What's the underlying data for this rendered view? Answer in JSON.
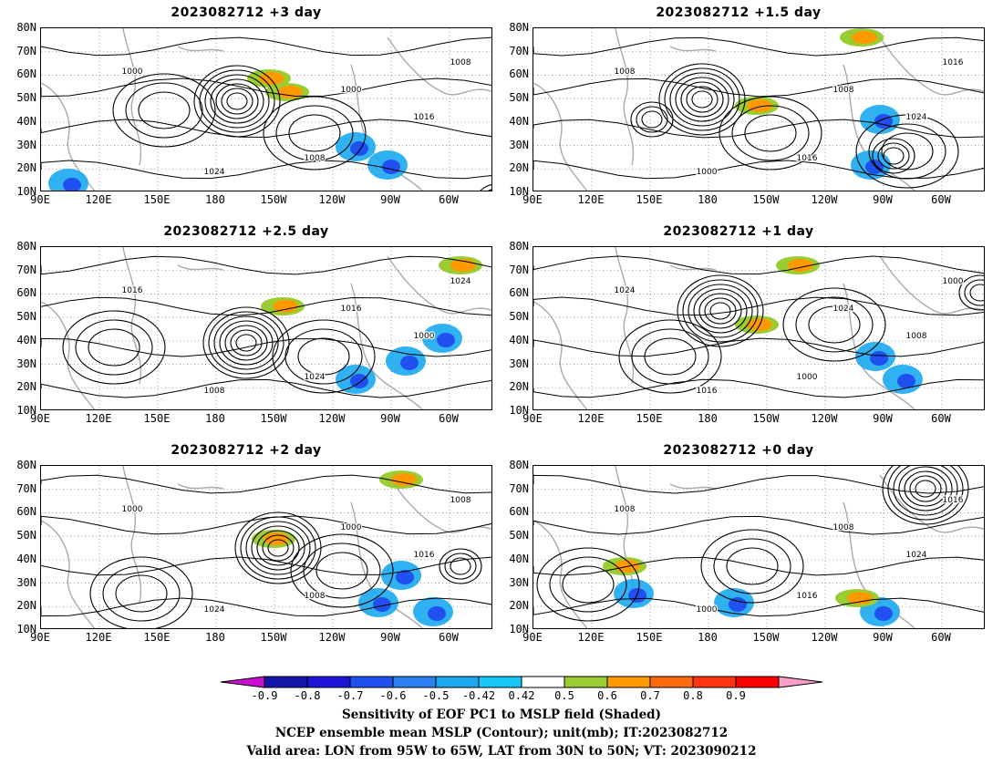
{
  "panels": [
    {
      "title": "2023082712 +3 day"
    },
    {
      "title": "2023082712 +1.5 day"
    },
    {
      "title": "2023082712 +2.5 day"
    },
    {
      "title": "2023082712 +1 day"
    },
    {
      "title": "2023082712 +2 day"
    },
    {
      "title": "2023082712 +0 day"
    }
  ],
  "axes": {
    "lat_labels": [
      "80N",
      "70N",
      "60N",
      "50N",
      "40N",
      "30N",
      "20N",
      "10N"
    ],
    "lon_labels": [
      "90E",
      "120E",
      "150E",
      "180",
      "150W",
      "120W",
      "90W",
      "60W"
    ],
    "lat_range": [
      10,
      80
    ],
    "lon_range": [
      90,
      320
    ]
  },
  "colorbar": {
    "labels": [
      "-0.9",
      "-0.8",
      "-0.7",
      "-0.6",
      "-0.5",
      "-0.42",
      "0.42",
      "0.5",
      "0.6",
      "0.7",
      "0.8",
      "0.9"
    ],
    "colors": [
      "#ce0ecf",
      "#1414a8",
      "#1e14d8",
      "#2050f0",
      "#2d7ff0",
      "#1aa8f0",
      "#18c7f4",
      "#ffffff",
      "#9acd32",
      "#ff9900",
      "#ff6a10",
      "#ff3510",
      "#ff0000",
      "#f8a0c8"
    ]
  },
  "contour_labels": [
    "1000",
    "1008",
    "1016",
    "1024"
  ],
  "caption": {
    "line1": "Sensitivity of EOF PC1 to MSLP field (Shaded)",
    "line2": "NCEP ensemble mean MSLP (Contour); unit(mb); IT:2023082712",
    "line3": "Valid area: LON from 95W to 65W, LAT from 30N to 50N; VT: 2023090212"
  }
}
